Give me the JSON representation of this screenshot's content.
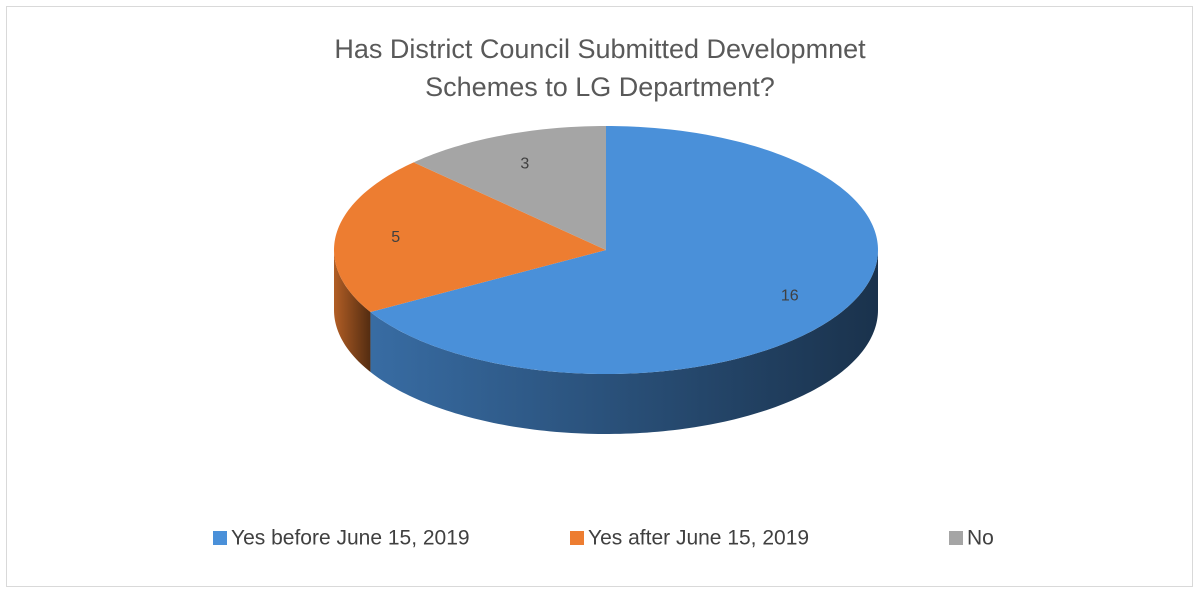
{
  "chart_data": {
    "type": "pie",
    "title": "Has District Council Submitted Developmnet Schemes to LG Department?",
    "categories": [
      "Yes before June 15, 2019",
      "Yes after June 15, 2019",
      "No"
    ],
    "values": [
      16,
      5,
      3
    ],
    "colors": [
      "#4a90d9",
      "#ed7d31",
      "#a5a5a5"
    ],
    "legend": "bottom"
  }
}
